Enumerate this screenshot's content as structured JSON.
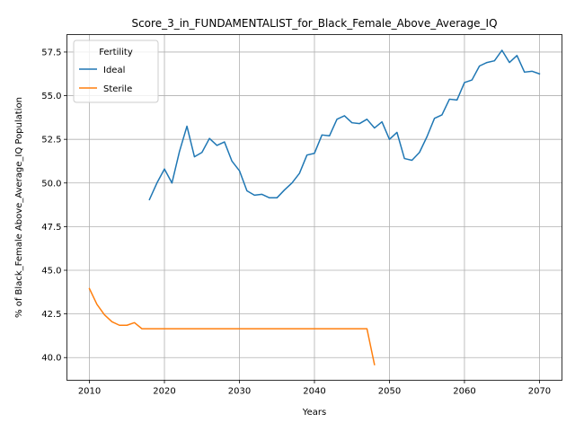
{
  "chart_data": {
    "type": "line",
    "title": "Score_3_in_FUNDAMENTALIST_for_Black_Female_Above_Average_IQ",
    "xlabel": "Years",
    "ylabel": "% of Black_Female Above_Average_IQ Population",
    "xlim": [
      2007,
      2073
    ],
    "ylim": [
      38.7,
      58.5
    ],
    "xticks": [
      2010,
      2020,
      2030,
      2040,
      2050,
      2060,
      2070
    ],
    "yticks": [
      40.0,
      42.5,
      45.0,
      47.5,
      50.0,
      52.5,
      55.0,
      57.5
    ],
    "ytick_labels": [
      "40.0",
      "42.5",
      "45.0",
      "47.5",
      "50.0",
      "52.5",
      "55.0",
      "57.5"
    ],
    "grid": true,
    "legend": {
      "title": "Fertility",
      "placement": "top-left"
    },
    "series": [
      {
        "name": "Ideal",
        "color": "#1f77b4",
        "x": [
          2018,
          2019,
          2020,
          2021,
          2022,
          2023,
          2024,
          2025,
          2026,
          2027,
          2028,
          2029,
          2030,
          2031,
          2032,
          2033,
          2034,
          2035,
          2036,
          2037,
          2038,
          2039,
          2040,
          2041,
          2042,
          2043,
          2044,
          2045,
          2046,
          2047,
          2048,
          2049,
          2050,
          2051,
          2052,
          2053,
          2054,
          2055,
          2056,
          2057,
          2058,
          2059,
          2060,
          2061,
          2062,
          2063,
          2064,
          2065,
          2066,
          2067,
          2068,
          2069,
          2070
        ],
        "y": [
          49.05,
          50.0,
          50.8,
          50.0,
          51.8,
          53.25,
          51.5,
          51.75,
          52.55,
          52.15,
          52.35,
          51.25,
          50.7,
          49.55,
          49.3,
          49.35,
          49.15,
          49.15,
          49.6,
          50.0,
          50.55,
          51.6,
          51.7,
          52.75,
          52.7,
          53.65,
          53.85,
          53.45,
          53.4,
          53.65,
          53.15,
          53.5,
          52.5,
          52.9,
          51.4,
          51.3,
          51.75,
          52.65,
          53.7,
          53.9,
          54.8,
          54.75,
          55.75,
          55.9,
          56.7,
          56.9,
          57.0,
          57.6,
          56.9,
          57.3,
          56.35,
          56.4,
          56.25
        ]
      },
      {
        "name": "Sterile",
        "color": "#ff7f0e",
        "x": [
          2010,
          2011,
          2012,
          2013,
          2014,
          2015,
          2016,
          2017,
          2018,
          2019,
          2020,
          2021,
          2022,
          2023,
          2024,
          2025,
          2026,
          2027,
          2028,
          2029,
          2030,
          2031,
          2032,
          2033,
          2034,
          2035,
          2036,
          2037,
          2038,
          2039,
          2040,
          2041,
          2042,
          2043,
          2044,
          2045,
          2046,
          2047,
          2048
        ],
        "y": [
          43.95,
          43.05,
          42.45,
          42.05,
          41.85,
          41.85,
          42.0,
          41.65,
          41.65,
          41.65,
          41.65,
          41.65,
          41.65,
          41.65,
          41.65,
          41.65,
          41.65,
          41.65,
          41.65,
          41.65,
          41.65,
          41.65,
          41.65,
          41.65,
          41.65,
          41.65,
          41.65,
          41.65,
          41.65,
          41.65,
          41.65,
          41.65,
          41.65,
          41.65,
          41.65,
          41.65,
          41.65,
          41.65,
          39.6
        ]
      }
    ]
  }
}
